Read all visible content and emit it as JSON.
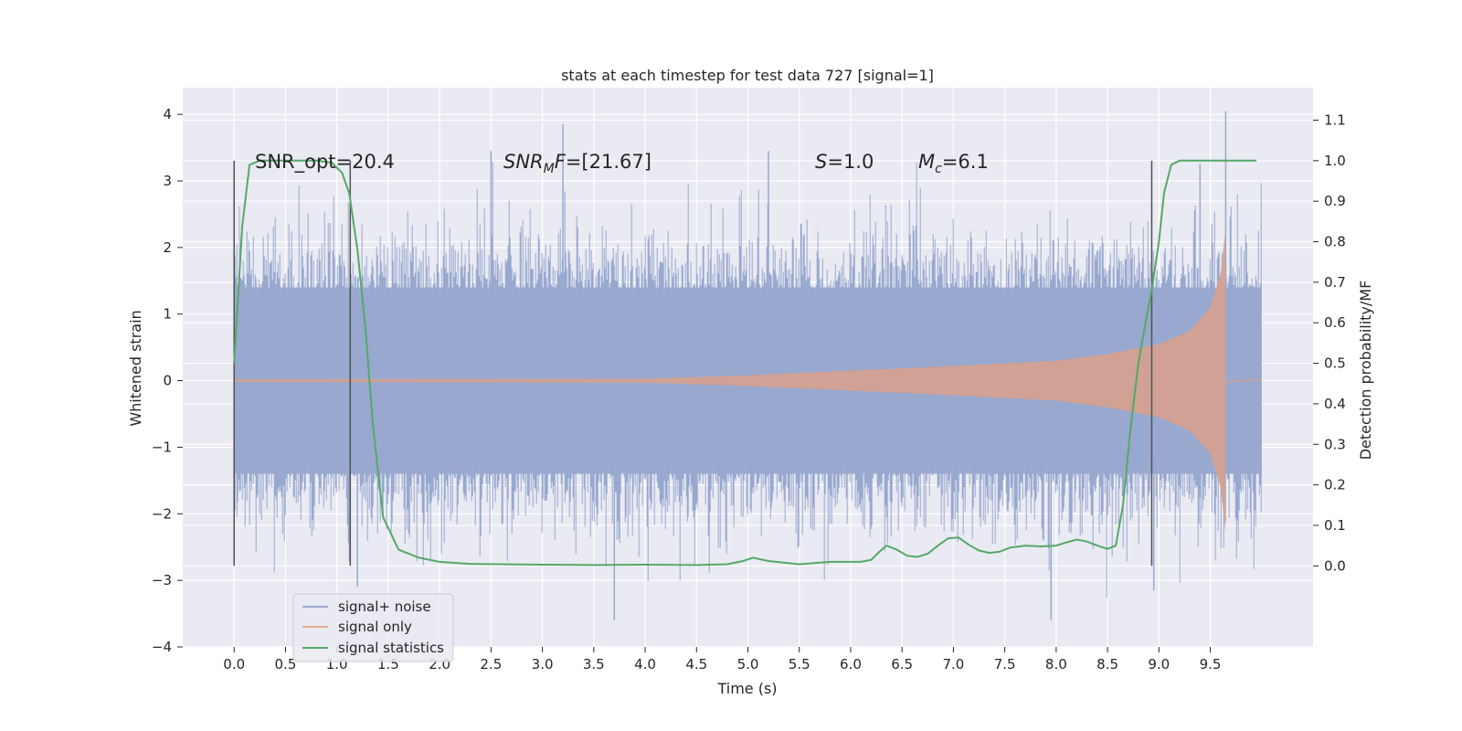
{
  "chart_data": {
    "type": "line",
    "title": "stats at each timestep for test data 727 [signal=1]",
    "xlabel": "Time (s)",
    "ylabel": "Whitened strain",
    "y2label": "Detection probability/MF",
    "xlim": [
      -0.5,
      10.5
    ],
    "ylim": [
      -4,
      4.4
    ],
    "y2lim": [
      -0.2,
      1.18
    ],
    "xticks": [
      "0.0",
      "0.5",
      "1.0",
      "1.5",
      "2.0",
      "2.5",
      "3.0",
      "3.5",
      "4.0",
      "4.5",
      "5.0",
      "5.5",
      "6.0",
      "6.5",
      "7.0",
      "7.5",
      "8.0",
      "8.5",
      "9.0",
      "9.5"
    ],
    "yticks": [
      "−4",
      "−3",
      "−2",
      "−1",
      "0",
      "1",
      "2",
      "3",
      "4"
    ],
    "y2ticks": [
      "0.0",
      "0.1",
      "0.2",
      "0.3",
      "0.4",
      "0.5",
      "0.6",
      "0.7",
      "0.8",
      "0.9",
      "1.0",
      "1.1"
    ],
    "grid": true,
    "legend_position": "lower-left",
    "annotations": {
      "snr_opt": "SNR_opt=20.4",
      "snr_mf_label": "SNR",
      "snr_mf_sub": "M",
      "snr_mf_rest": "F",
      "snr_mf_value": "=[21.67]",
      "s_label": "S",
      "s_value": "=1.0",
      "mc_label": "M",
      "mc_sub": "c",
      "mc_value": "=6.1"
    },
    "colors": {
      "background": "#eaeaf2",
      "noise": "#98a8cf",
      "signal": "#dd8452",
      "statistics": "#55a868",
      "vlines": "#505050"
    },
    "vertical_lines_x": [
      0.0,
      1.13,
      8.93
    ],
    "series": [
      {
        "name": "signal+ noise",
        "x_range": [
          0.0,
          10.0
        ],
        "envelope_typical": 1.4,
        "envelope_peak": 4.05
      },
      {
        "name": "signal only",
        "x_range": [
          0.0,
          9.65
        ],
        "x": [
          0.0,
          4.0,
          5.0,
          6.0,
          7.0,
          8.0,
          8.5,
          9.0,
          9.3,
          9.5,
          9.6,
          9.65
        ],
        "amplitude": [
          0.02,
          0.03,
          0.08,
          0.15,
          0.22,
          0.3,
          0.4,
          0.55,
          0.75,
          1.1,
          1.6,
          2.3
        ]
      },
      {
        "name": "signal statistics",
        "x": [
          0.0,
          0.08,
          0.15,
          0.25,
          0.4,
          0.6,
          0.8,
          0.95,
          1.05,
          1.12,
          1.2,
          1.28,
          1.35,
          1.45,
          1.6,
          1.8,
          2.0,
          2.3,
          3.0,
          3.5,
          4.0,
          4.5,
          4.8,
          4.95,
          5.05,
          5.2,
          5.5,
          5.8,
          6.1,
          6.2,
          6.3,
          6.35,
          6.45,
          6.55,
          6.65,
          6.75,
          6.85,
          6.95,
          7.05,
          7.15,
          7.25,
          7.35,
          7.45,
          7.55,
          7.7,
          7.85,
          8.0,
          8.1,
          8.2,
          8.3,
          8.4,
          8.5,
          8.58,
          8.65,
          8.72,
          8.8,
          8.87,
          8.93,
          9.0,
          9.05,
          9.12,
          9.2,
          9.3,
          9.5,
          9.7,
          9.95
        ],
        "y": [
          0.5,
          0.84,
          0.99,
          1.0,
          1.0,
          1.0,
          1.0,
          0.995,
          0.97,
          0.92,
          0.78,
          0.58,
          0.35,
          0.12,
          0.04,
          0.02,
          0.01,
          0.005,
          0.003,
          0.002,
          0.003,
          0.002,
          0.004,
          0.012,
          0.02,
          0.012,
          0.004,
          0.01,
          0.01,
          0.015,
          0.04,
          0.05,
          0.04,
          0.025,
          0.022,
          0.03,
          0.05,
          0.068,
          0.07,
          0.052,
          0.038,
          0.032,
          0.035,
          0.045,
          0.05,
          0.048,
          0.05,
          0.058,
          0.065,
          0.06,
          0.05,
          0.042,
          0.05,
          0.15,
          0.33,
          0.5,
          0.6,
          0.68,
          0.8,
          0.92,
          0.99,
          1.0,
          1.0,
          1.0,
          1.0,
          1.0
        ]
      }
    ]
  }
}
